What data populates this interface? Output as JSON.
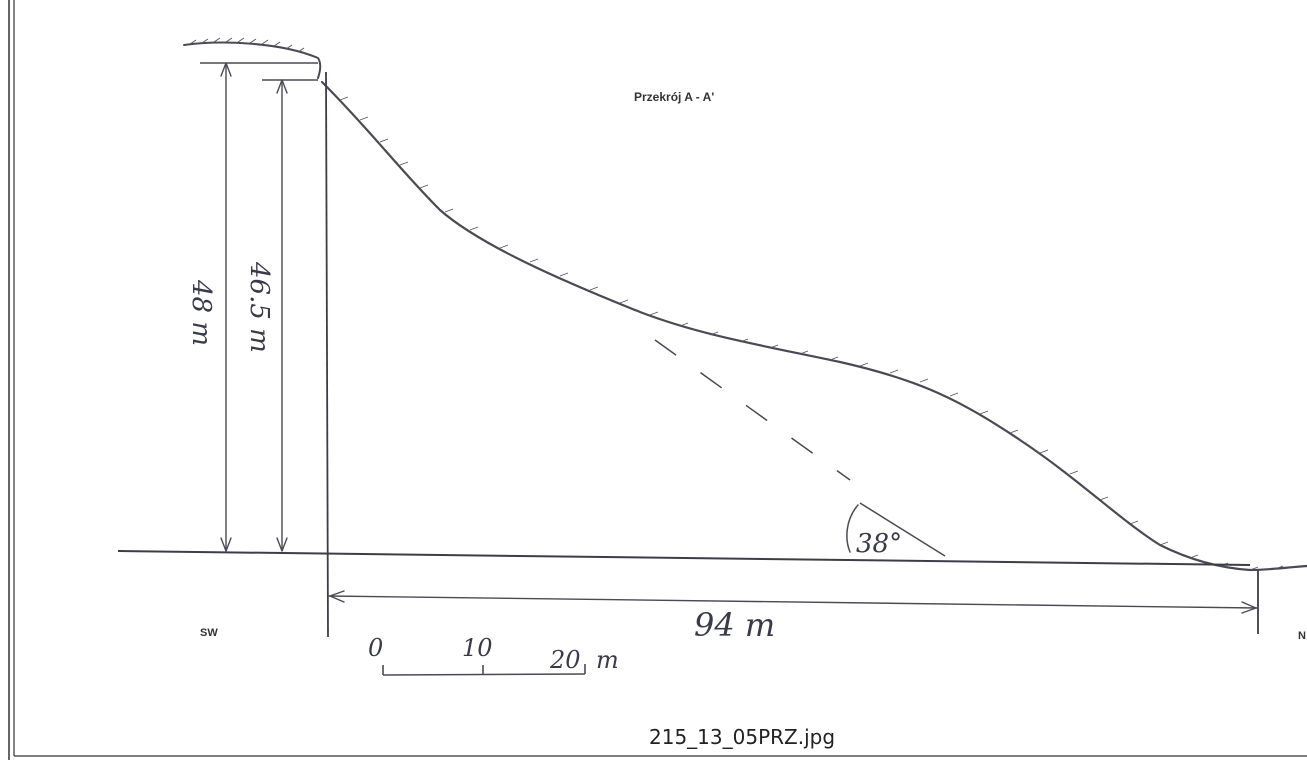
{
  "title": "Przekrój A - A'",
  "left_direction": "SW",
  "right_direction": "N",
  "dimensions": {
    "total_height": "48 m",
    "inner_height": "46.5 m",
    "horizontal_length": "94 m",
    "slope_angle": "38°"
  },
  "scale_bar": {
    "ticks": [
      "0",
      "10",
      "20"
    ],
    "unit": "m"
  },
  "caption": "215_13_05PRZ.jpg",
  "colors": {
    "ink": "#4a4a55",
    "background": "#ffffff"
  }
}
